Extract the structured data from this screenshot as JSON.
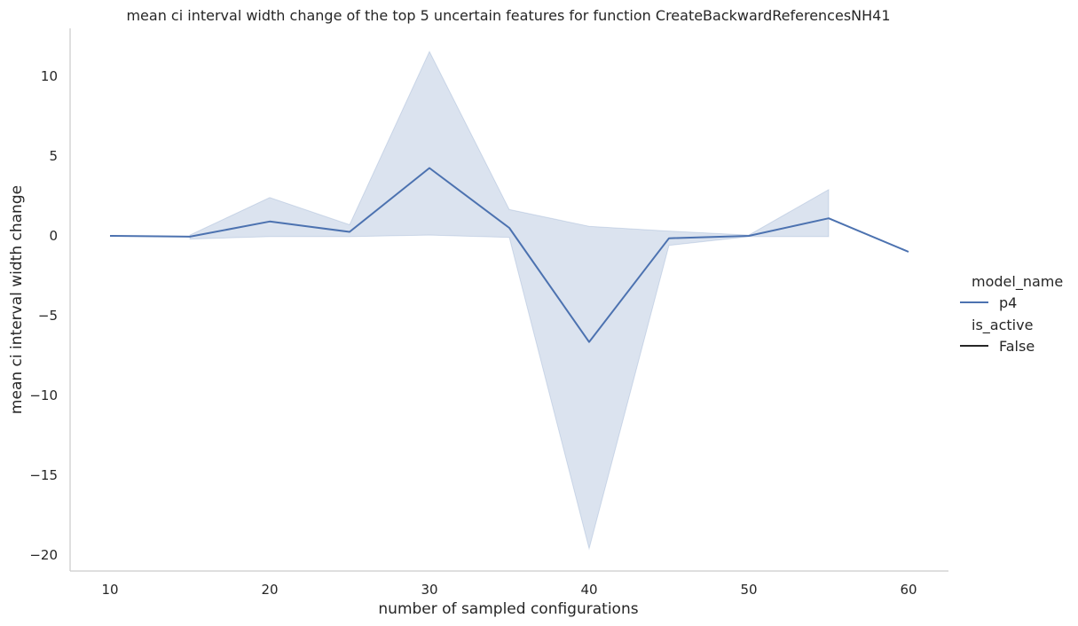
{
  "chart_data": {
    "type": "line",
    "title": "mean ci interval width change of the top 5 uncertain features for function CreateBackwardReferencesNH41",
    "xlabel": "number of sampled configurations",
    "ylabel": "mean ci interval width change",
    "xlim": [
      7.5,
      62.5
    ],
    "ylim": [
      -21.0,
      13.0
    ],
    "xticks": [
      10,
      20,
      30,
      40,
      50,
      60
    ],
    "yticks": [
      -20,
      -15,
      -10,
      -5,
      0,
      5,
      10
    ],
    "grid": false,
    "legend_position": "right",
    "legend": {
      "groups": [
        {
          "title": "model_name",
          "entries": [
            {
              "label": "p4",
              "color": "#4c72b0"
            }
          ]
        },
        {
          "title": "is_active",
          "entries": [
            {
              "label": "False",
              "color": "#262626"
            }
          ]
        }
      ]
    },
    "series": [
      {
        "name": "p4",
        "color": "#4c72b0",
        "x": [
          10,
          15,
          20,
          25,
          30,
          35,
          40,
          45,
          50,
          55,
          60
        ],
        "y": [
          0.0,
          -0.05,
          0.9,
          0.25,
          4.25,
          0.5,
          -6.65,
          -0.15,
          0.0,
          1.1,
          -1.0
        ],
        "ci_lower": [
          null,
          -0.2,
          -0.05,
          -0.05,
          0.05,
          -0.1,
          -19.6,
          -0.6,
          -0.05,
          -0.05,
          null
        ],
        "ci_upper": [
          null,
          0.05,
          2.4,
          0.7,
          11.55,
          1.65,
          0.6,
          0.3,
          0.05,
          2.9,
          null
        ]
      }
    ]
  }
}
